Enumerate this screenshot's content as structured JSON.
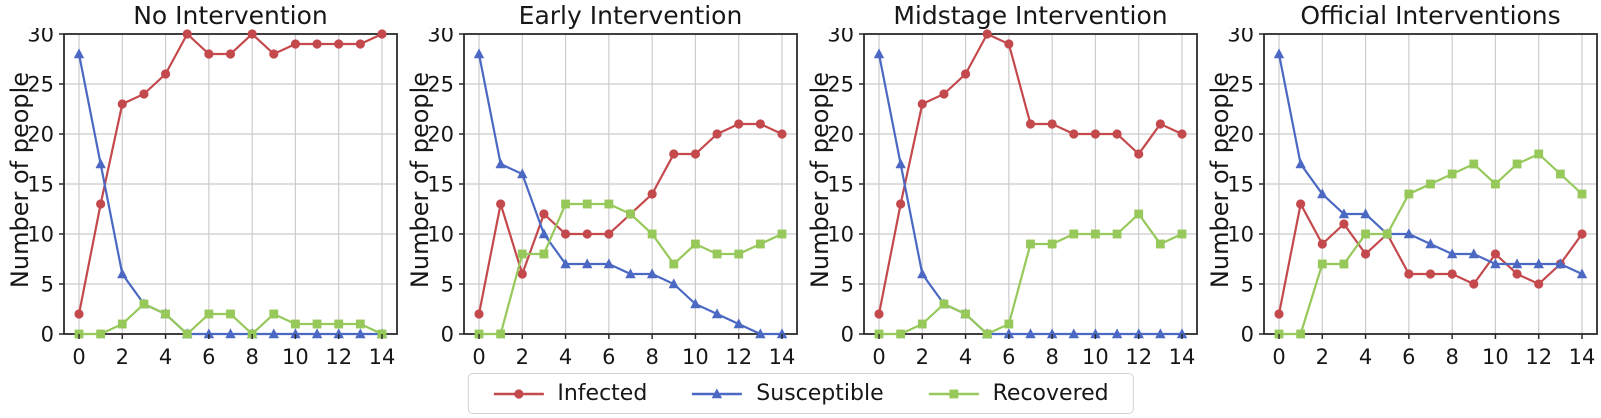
{
  "figure": {
    "ylabel": "Number of people",
    "x_ticks": [
      0,
      2,
      4,
      6,
      8,
      10,
      12,
      14
    ],
    "y_ticks": [
      0,
      5,
      10,
      15,
      20,
      25,
      30
    ],
    "xlim": [
      0,
      14
    ],
    "ylim": [
      0,
      30
    ],
    "grid": true
  },
  "colors": {
    "infected": "#c4494d",
    "susceptible": "#4b69c3",
    "recovered": "#96c85a",
    "grid": "#cccccc",
    "spine": "#2b2b2b",
    "text": "#171717",
    "legend_border": "#d4d4d4"
  },
  "series_styles": [
    {
      "name": "Infected",
      "color": "#c4494d",
      "marker": "circle"
    },
    {
      "name": "Susceptible",
      "color": "#4b69c3",
      "marker": "triangle"
    },
    {
      "name": "Recovered",
      "color": "#96c85a",
      "marker": "square"
    }
  ],
  "legend": {
    "position": "bottom-center",
    "items": [
      "Infected",
      "Susceptible",
      "Recovered"
    ]
  },
  "chart_data": [
    {
      "type": "line",
      "title": "No Intervention",
      "x": [
        0,
        1,
        2,
        3,
        4,
        5,
        6,
        7,
        8,
        9,
        10,
        11,
        12,
        13,
        14
      ],
      "ylim": [
        0,
        30
      ],
      "series": [
        {
          "name": "Infected",
          "values": [
            2,
            13,
            23,
            24,
            26,
            30,
            28,
            28,
            30,
            28,
            29,
            29,
            29,
            29,
            30
          ]
        },
        {
          "name": "Susceptible",
          "values": [
            28,
            17,
            6,
            3,
            2,
            0,
            0,
            0,
            0,
            0,
            0,
            0,
            0,
            0,
            0
          ]
        },
        {
          "name": "Recovered",
          "values": [
            0,
            0,
            1,
            3,
            2,
            0,
            2,
            2,
            0,
            2,
            1,
            1,
            1,
            1,
            0
          ]
        }
      ]
    },
    {
      "type": "line",
      "title": "Early Intervention",
      "x": [
        0,
        1,
        2,
        3,
        4,
        5,
        6,
        7,
        8,
        9,
        10,
        11,
        12,
        13,
        14
      ],
      "ylim": [
        0,
        30
      ],
      "series": [
        {
          "name": "Infected",
          "values": [
            2,
            13,
            6,
            12,
            10,
            10,
            10,
            12,
            14,
            18,
            18,
            20,
            21,
            21,
            20
          ]
        },
        {
          "name": "Susceptible",
          "values": [
            28,
            17,
            16,
            10,
            7,
            7,
            7,
            6,
            6,
            5,
            3,
            2,
            1,
            0,
            0
          ]
        },
        {
          "name": "Recovered",
          "values": [
            0,
            0,
            8,
            8,
            13,
            13,
            13,
            12,
            10,
            7,
            9,
            8,
            8,
            9,
            10
          ]
        }
      ]
    },
    {
      "type": "line",
      "title": "Midstage Intervention",
      "x": [
        0,
        1,
        2,
        3,
        4,
        5,
        6,
        7,
        8,
        9,
        10,
        11,
        12,
        13,
        14
      ],
      "ylim": [
        0,
        30
      ],
      "series": [
        {
          "name": "Infected",
          "values": [
            2,
            13,
            23,
            24,
            26,
            30,
            29,
            21,
            21,
            20,
            20,
            20,
            18,
            21,
            20
          ]
        },
        {
          "name": "Susceptible",
          "values": [
            28,
            17,
            6,
            3,
            2,
            0,
            0,
            0,
            0,
            0,
            0,
            0,
            0,
            0,
            0
          ]
        },
        {
          "name": "Recovered",
          "values": [
            0,
            0,
            1,
            3,
            2,
            0,
            1,
            9,
            9,
            10,
            10,
            10,
            12,
            9,
            10
          ]
        }
      ]
    },
    {
      "type": "line",
      "title": "Official Interventions",
      "x": [
        0,
        1,
        2,
        3,
        4,
        5,
        6,
        7,
        8,
        9,
        10,
        11,
        12,
        13,
        14
      ],
      "ylim": [
        0,
        30
      ],
      "series": [
        {
          "name": "Infected",
          "values": [
            2,
            13,
            9,
            11,
            8,
            10,
            6,
            6,
            6,
            5,
            8,
            6,
            5,
            7,
            10
          ]
        },
        {
          "name": "Susceptible",
          "values": [
            28,
            17,
            14,
            12,
            12,
            10,
            10,
            9,
            8,
            8,
            7,
            7,
            7,
            7,
            6
          ]
        },
        {
          "name": "Recovered",
          "values": [
            0,
            0,
            7,
            7,
            10,
            10,
            14,
            15,
            16,
            17,
            15,
            17,
            18,
            16,
            14
          ]
        }
      ]
    }
  ]
}
